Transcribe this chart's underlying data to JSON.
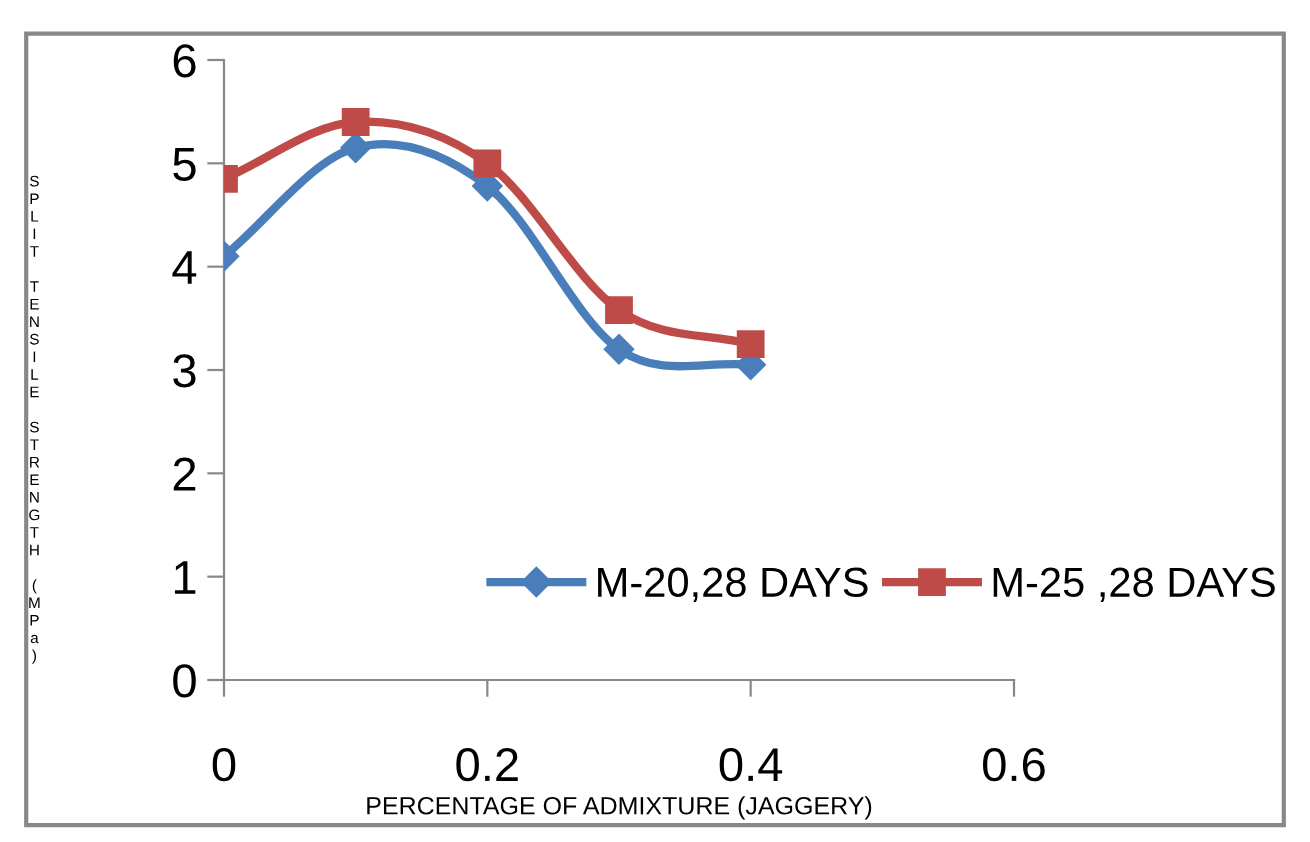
{
  "chart_data": {
    "type": "line",
    "xlabel": "PERCENTAGE OF ADMIXTURE (JAGGERY)",
    "ylabel": "SPLIT TENSILE STRENGTH (MPa)",
    "x": [
      0,
      0.1,
      0.2,
      0.3,
      0.4
    ],
    "series": [
      {
        "name": "M-20,28 DAYS",
        "color": "#4a7ebb",
        "marker": "diamond",
        "values": [
          4.1,
          5.15,
          4.78,
          3.2,
          3.05
        ]
      },
      {
        "name": "M-25 ,28 DAYS",
        "color": "#be4b48",
        "marker": "square",
        "values": [
          4.85,
          5.4,
          5.0,
          3.58,
          3.25
        ]
      }
    ],
    "xlim": [
      0,
      0.6
    ],
    "xticks": [
      0,
      0.2,
      0.4,
      0.6
    ],
    "ylim": [
      0,
      6
    ],
    "yticks": [
      0,
      1,
      2,
      3,
      4,
      5,
      6
    ],
    "grid": false,
    "legend": "bottom right",
    "line_style": "solid"
  }
}
